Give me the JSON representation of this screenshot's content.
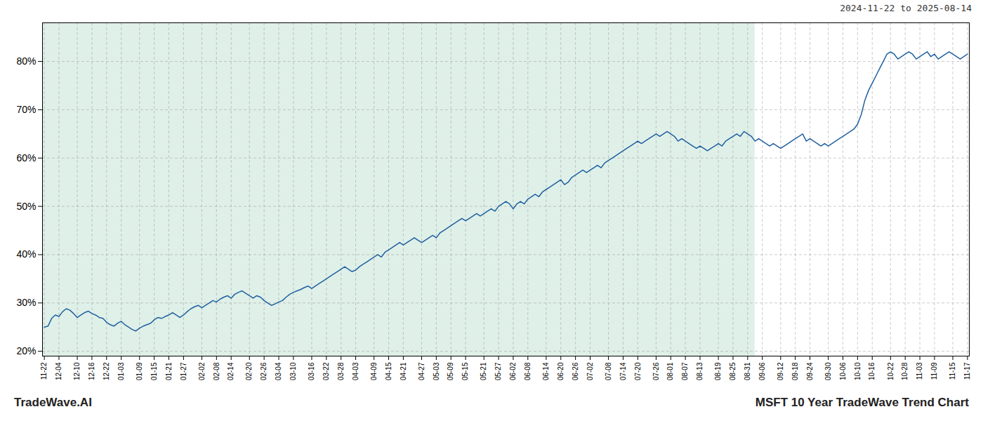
{
  "chart_data": {
    "type": "line",
    "title": "MSFT 10 Year TradeWave Trend Chart",
    "subtitle": "2024-11-22 to 2025-08-14",
    "annotations": [
      "TradeWave.AI"
    ],
    "color": "#2060a0",
    "grid": true,
    "ylim": [
      19,
      88
    ],
    "yticks": [
      {
        "value": 20,
        "label": "20%"
      },
      {
        "value": 30,
        "label": "30%"
      },
      {
        "value": 40,
        "label": "40%"
      },
      {
        "value": 50,
        "label": "50%"
      },
      {
        "value": 60,
        "label": "60%"
      },
      {
        "value": 70,
        "label": "70%"
      },
      {
        "value": 80,
        "label": "80%"
      }
    ],
    "shaded_region": {
      "end": 194,
      "color": "#dff0e8"
    },
    "categories": [
      "11-22",
      null,
      null,
      null,
      "12-04",
      null,
      null,
      null,
      null,
      "12-10",
      null,
      null,
      null,
      "12-16",
      null,
      null,
      null,
      "12-22",
      null,
      null,
      null,
      "01-03",
      null,
      null,
      null,
      null,
      "01-09",
      null,
      null,
      null,
      "01-15",
      null,
      null,
      null,
      "01-21",
      null,
      null,
      null,
      "01-27",
      null,
      null,
      null,
      null,
      "02-02",
      null,
      null,
      null,
      "02-08",
      null,
      null,
      null,
      "02-14",
      null,
      null,
      null,
      null,
      "02-20",
      null,
      null,
      null,
      "02-26",
      null,
      null,
      null,
      "03-04",
      null,
      null,
      null,
      "03-10",
      null,
      null,
      null,
      null,
      "03-16",
      null,
      null,
      null,
      "03-22",
      null,
      null,
      null,
      "03-28",
      null,
      null,
      null,
      "04-03",
      null,
      null,
      null,
      null,
      "04-09",
      null,
      null,
      null,
      "04-15",
      null,
      null,
      null,
      "04-21",
      null,
      null,
      null,
      null,
      "04-27",
      null,
      null,
      null,
      "05-03",
      null,
      null,
      null,
      "05-09",
      null,
      null,
      null,
      "05-15",
      null,
      null,
      null,
      null,
      "05-21",
      null,
      null,
      null,
      "05-27",
      null,
      null,
      null,
      "06-02",
      null,
      null,
      null,
      "06-08",
      null,
      null,
      null,
      null,
      "06-14",
      null,
      null,
      null,
      "06-20",
      null,
      null,
      null,
      "06-26",
      null,
      null,
      null,
      "07-02",
      null,
      null,
      null,
      null,
      "07-08",
      null,
      null,
      null,
      "07-14",
      null,
      null,
      null,
      "07-20",
      null,
      null,
      null,
      null,
      "07-26",
      null,
      null,
      null,
      "08-01",
      null,
      null,
      null,
      "08-07",
      null,
      null,
      null,
      "08-13",
      null,
      null,
      null,
      null,
      "08-19",
      null,
      null,
      null,
      "08-25",
      null,
      null,
      null,
      "08-31",
      null,
      null,
      null,
      "09-06",
      null,
      null,
      null,
      null,
      "09-12",
      null,
      null,
      null,
      "09-18",
      null,
      null,
      null,
      "09-24",
      null,
      null,
      null,
      null,
      "09-30",
      null,
      null,
      null,
      "10-06",
      null,
      null,
      null,
      "10-10",
      null,
      null,
      null,
      "10-16",
      null,
      null,
      null,
      null,
      "10-22",
      null,
      null,
      null,
      "10-28",
      null,
      null,
      null,
      "11-03",
      null,
      null,
      null,
      "11-09",
      null,
      null,
      null,
      null,
      "11-15",
      null,
      null,
      null,
      "11-17"
    ],
    "values": [
      25.0,
      25.2,
      26.8,
      27.5,
      27.2,
      28.2,
      28.8,
      28.5,
      27.8,
      27.0,
      27.5,
      28.0,
      28.3,
      27.8,
      27.5,
      27.0,
      26.8,
      26.0,
      25.5,
      25.2,
      25.8,
      26.2,
      25.5,
      25.0,
      24.5,
      24.2,
      24.8,
      25.2,
      25.5,
      25.8,
      26.5,
      27.0,
      26.8,
      27.2,
      27.5,
      28.0,
      27.5,
      27.0,
      27.5,
      28.2,
      28.8,
      29.2,
      29.5,
      29.0,
      29.5,
      30.0,
      30.5,
      30.2,
      30.8,
      31.2,
      31.5,
      31.0,
      31.8,
      32.2,
      32.5,
      32.0,
      31.5,
      31.0,
      31.5,
      31.2,
      30.5,
      30.0,
      29.5,
      29.8,
      30.2,
      30.5,
      31.2,
      31.8,
      32.2,
      32.5,
      32.8,
      33.2,
      33.5,
      33.0,
      33.5,
      34.0,
      34.5,
      35.0,
      35.5,
      36.0,
      36.5,
      37.0,
      37.5,
      37.0,
      36.5,
      36.8,
      37.5,
      38.0,
      38.5,
      39.0,
      39.5,
      40.0,
      39.5,
      40.5,
      41.0,
      41.5,
      42.0,
      42.5,
      42.0,
      42.5,
      43.0,
      43.5,
      43.0,
      42.5,
      43.0,
      43.5,
      44.0,
      43.5,
      44.5,
      45.0,
      45.5,
      46.0,
      46.5,
      47.0,
      47.5,
      47.0,
      47.5,
      48.0,
      48.5,
      48.0,
      48.5,
      49.0,
      49.5,
      49.0,
      50.0,
      50.5,
      51.0,
      50.5,
      49.5,
      50.5,
      51.0,
      50.5,
      51.5,
      52.0,
      52.5,
      52.0,
      53.0,
      53.5,
      54.0,
      54.5,
      55.0,
      55.5,
      54.5,
      55.0,
      56.0,
      56.5,
      57.0,
      57.5,
      57.0,
      57.5,
      58.0,
      58.5,
      58.0,
      59.0,
      59.5,
      60.0,
      60.5,
      61.0,
      61.5,
      62.0,
      62.5,
      63.0,
      63.5,
      63.0,
      63.5,
      64.0,
      64.5,
      65.0,
      64.5,
      65.0,
      65.5,
      65.0,
      64.5,
      63.5,
      64.0,
      63.5,
      63.0,
      62.5,
      62.0,
      62.5,
      62.0,
      61.5,
      62.0,
      62.5,
      63.0,
      62.5,
      63.5,
      64.0,
      64.5,
      65.0,
      64.5,
      65.5,
      65.0,
      64.5,
      63.5,
      64.0,
      63.5,
      63.0,
      62.5,
      63.0,
      62.5,
      62.0,
      62.5,
      63.0,
      63.5,
      64.0,
      64.5,
      65.0,
      63.5,
      64.0,
      63.5,
      63.0,
      62.5,
      63.0,
      62.5,
      63.0,
      63.5,
      64.0,
      64.5,
      65.0,
      65.5,
      66.0,
      67.0,
      69.0,
      72.0,
      74.0,
      75.5,
      77.0,
      78.5,
      80.0,
      81.5,
      82.0,
      81.5,
      80.5,
      81.0,
      81.5,
      82.0,
      81.5,
      80.5,
      81.0,
      81.5,
      82.0,
      81.0,
      81.5,
      80.5,
      81.0,
      81.5,
      82.0,
      81.5,
      81.0,
      80.5,
      81.0,
      81.5
    ]
  }
}
